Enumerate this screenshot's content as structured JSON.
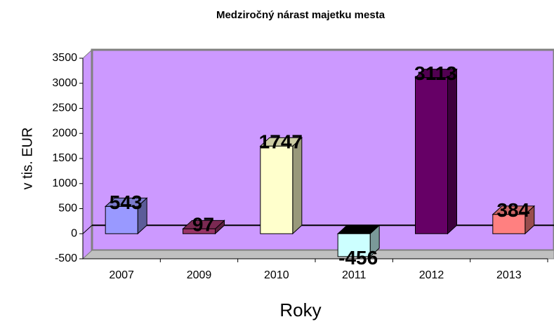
{
  "chart_data": {
    "type": "bar3d",
    "title": "Medziročný nárast majetku mesta",
    "x_label": "Roky",
    "y_label": "v tis. EUR",
    "categories": [
      "2007",
      "2009",
      "2010",
      "2011",
      "2012",
      "2013"
    ],
    "values": [
      543,
      97,
      1747,
      -456,
      3113,
      384
    ],
    "colors": [
      "#9999ff",
      "#993366",
      "#ffffcc",
      "#ccffff",
      "#660066",
      "#ff8080"
    ],
    "ylim": [
      -500,
      3500
    ],
    "yticks": [
      -500,
      0,
      500,
      1000,
      1500,
      2000,
      2500,
      3000,
      3500
    ],
    "wall_color": "#cc99ff",
    "floor_color": "#c0c0c0"
  }
}
